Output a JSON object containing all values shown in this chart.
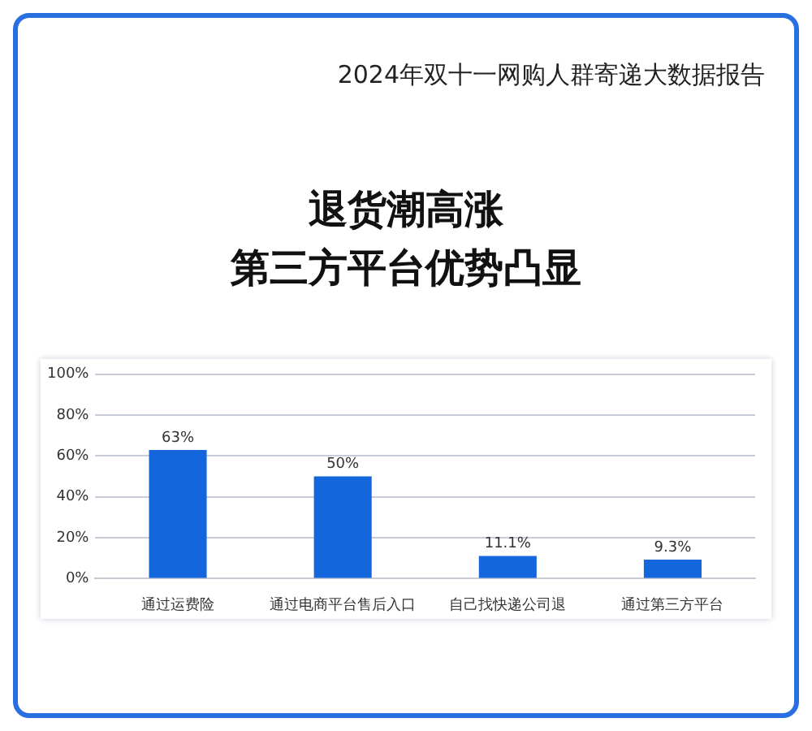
{
  "chart_data": {
    "type": "bar",
    "annotations": [
      "2024年双十一网购人群寄递大数据报告"
    ],
    "title": "退货潮高涨",
    "subtitle": "第三方平台优势凸显",
    "categories": [
      "通过运费险",
      "通过电商平台售后入口",
      "自己找快递公司退",
      "通过第三方平台"
    ],
    "values": [
      63,
      50,
      11.1,
      9.3
    ],
    "value_labels": [
      "63%",
      "50%",
      "11.1%",
      "9.3%"
    ],
    "color": "#1466dc",
    "ylim": [
      0,
      100
    ],
    "yticks": [
      {
        "value": 0,
        "label": "0%"
      },
      {
        "value": 20,
        "label": "20%"
      },
      {
        "value": 40,
        "label": "40%"
      },
      {
        "value": 60,
        "label": "60%"
      },
      {
        "value": 80,
        "label": "80%"
      },
      {
        "value": 100,
        "label": "100%"
      }
    ],
    "grid": "y"
  }
}
